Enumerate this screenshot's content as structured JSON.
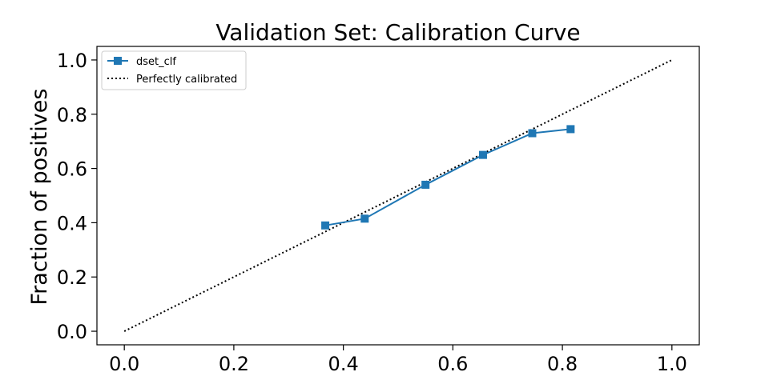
{
  "chart_data": {
    "type": "line",
    "title": "Validation Set: Calibration Curve",
    "xlabel": "",
    "ylabel": "Fraction of positives",
    "xlim": [
      -0.05,
      1.05
    ],
    "ylim": [
      -0.05,
      1.05
    ],
    "xticks": [
      "0.0",
      "0.2",
      "0.4",
      "0.6",
      "0.8",
      "1.0"
    ],
    "yticks": [
      "0.0",
      "0.2",
      "0.4",
      "0.6",
      "0.8",
      "1.0"
    ],
    "grid": false,
    "legend_position": "top-left",
    "series": [
      {
        "name": "dset_clf",
        "style": "solid-square-markers",
        "color": "#1f77b4",
        "x": [
          0.367,
          0.439,
          0.55,
          0.655,
          0.745,
          0.815
        ],
        "y": [
          0.39,
          0.415,
          0.54,
          0.65,
          0.73,
          0.745
        ]
      },
      {
        "name": "Perfectly calibrated",
        "style": "dotted",
        "color": "#000000",
        "x": [
          0,
          1
        ],
        "y": [
          0,
          1
        ]
      }
    ]
  }
}
